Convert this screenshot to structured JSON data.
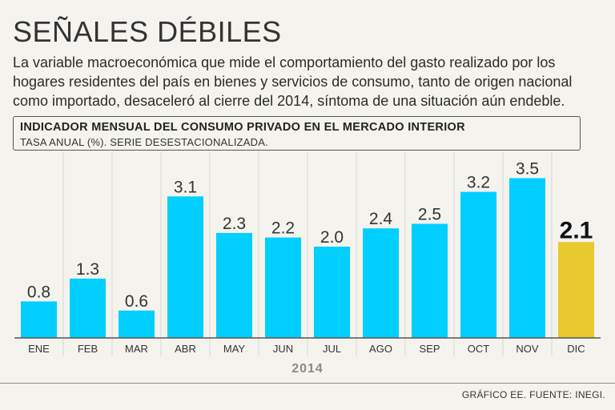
{
  "title": "SEÑALES DÉBILES",
  "subtitle": "La variable macroeconómica que mide el comportamiento del gasto realizado por los hogares residentes del país en bienes y servicios de consumo, tanto de origen nacional como importado, desaceleró al cierre del 2014, síntoma de una situación aún endeble.",
  "header": {
    "title": "INDICADOR MENSUAL DEL CONSUMO PRIVADO EN EL MERCADO INTERIOR",
    "subtitle": "TASA ANUAL (%). SERIE DESESTACIONALIZADA."
  },
  "footer": {
    "year": "2014",
    "source": "GRÁFICO EE. FUENTE: INEGI."
  },
  "colors": {
    "bar": "#00cfff",
    "highlight": "#e8c92e",
    "background": "#f4f3ee"
  },
  "chart_data": {
    "type": "bar",
    "categories": [
      "ENE",
      "FEB",
      "MAR",
      "ABR",
      "MAY",
      "JUN",
      "JUL",
      "AGO",
      "SEP",
      "OCT",
      "NOV",
      "DIC"
    ],
    "values": [
      0.8,
      1.3,
      0.6,
      3.1,
      2.3,
      2.2,
      2.0,
      2.4,
      2.5,
      3.2,
      3.5,
      2.1
    ],
    "labels": [
      "0.8",
      "1.3",
      "0.6",
      "3.1",
      "2.3",
      "2.2",
      "2.0",
      "2.4",
      "2.5",
      "3.2",
      "3.5",
      "2.1"
    ],
    "highlight_index": 11,
    "title": "INDICADOR MENSUAL DEL CONSUMO PRIVADO EN EL MERCADO INTERIOR",
    "xlabel": "2014",
    "ylabel": "TASA ANUAL (%). SERIE DESESTACIONALIZADA.",
    "ylim": [
      0,
      3.5
    ],
    "grid": false
  }
}
